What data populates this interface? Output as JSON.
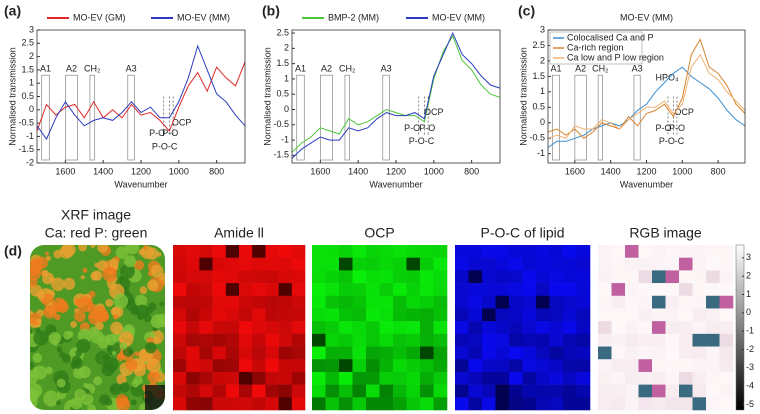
{
  "chart_data": [
    {
      "type": "line",
      "panel": "(a)",
      "xlabel": "Wavenumber",
      "ylabel": "Normalised transmission",
      "x": [
        1750,
        1700,
        1650,
        1600,
        1550,
        1500,
        1450,
        1400,
        1350,
        1300,
        1250,
        1200,
        1150,
        1100,
        1050,
        1000,
        950,
        900,
        850,
        800,
        750,
        700,
        650
      ],
      "xlim": [
        1750,
        650
      ],
      "xticks": [
        1600,
        1400,
        1200,
        1000,
        800
      ],
      "ylim": [
        -2,
        3
      ],
      "yticks": [
        -2,
        -1.5,
        -1,
        -0.5,
        0,
        0.5,
        1,
        1.5,
        2,
        2.5,
        3
      ],
      "legend": "top",
      "series": [
        {
          "name": "MO-EV (GM)",
          "color": "#e02828",
          "values": [
            -0.8,
            0.2,
            -0.2,
            0.1,
            0.2,
            -0.3,
            0.3,
            -0.3,
            0,
            -0.3,
            0.2,
            -0.2,
            -0.1,
            -0.4,
            -0.8,
            0.1,
            0.9,
            1.4,
            0.7,
            1.6,
            1.2,
            0.9,
            1.8
          ]
        },
        {
          "name": "MO-EV (MM)",
          "color": "#2b3cbf",
          "values": [
            -0.6,
            -1.1,
            -0.3,
            0.3,
            -0.2,
            -0.6,
            -0.4,
            -0.3,
            -0.4,
            -0.1,
            0.3,
            -0.1,
            0.1,
            -0.3,
            -0.3,
            0.3,
            1.2,
            2.4,
            1.5,
            0.6,
            0.3,
            -0.2,
            -0.6
          ]
        }
      ],
      "bands": [
        "A1",
        "A2",
        "CH₂",
        "A3"
      ],
      "peaks": [
        "P-O",
        "P-O",
        "P-O-C",
        "OCP"
      ]
    },
    {
      "type": "line",
      "panel": "(b)",
      "xlabel": "Wavenumber",
      "ylabel": "Normalised transmission",
      "x": [
        1750,
        1700,
        1650,
        1600,
        1550,
        1500,
        1450,
        1400,
        1350,
        1300,
        1250,
        1200,
        1150,
        1100,
        1050,
        1000,
        950,
        900,
        850,
        800,
        750,
        700,
        650
      ],
      "xlim": [
        1750,
        650
      ],
      "xticks": [
        1600,
        1400,
        1200,
        1000,
        800
      ],
      "ylim": [
        -1.75,
        2.6
      ],
      "yticks": [
        -1.5,
        -1,
        -0.5,
        0,
        0.5,
        1,
        1.5,
        2,
        2.5
      ],
      "legend": "top",
      "series": [
        {
          "name": "BMP-2  (MM)",
          "color": "#4cc63a",
          "values": [
            -1.4,
            -1.1,
            -0.9,
            -0.6,
            -0.7,
            -0.8,
            -0.3,
            -0.5,
            -0.4,
            -0.2,
            0,
            -0.1,
            -0.2,
            -0.2,
            -0.4,
            1.0,
            1.9,
            2.4,
            1.6,
            1.3,
            0.8,
            0.5,
            0.4
          ]
        },
        {
          "name": "MO-EV (MM)",
          "color": "#2b3cbf",
          "values": [
            -1.6,
            -1.3,
            -1.1,
            -0.9,
            -1.0,
            -1.0,
            -0.6,
            -0.7,
            -0.6,
            -0.3,
            -0.1,
            -0.2,
            -0.2,
            -0.1,
            -0.3,
            1.1,
            1.8,
            2.5,
            1.8,
            1.5,
            1.1,
            0.8,
            0.7
          ]
        }
      ],
      "bands": [
        "A1",
        "A2",
        "CH₂",
        "A3"
      ],
      "peaks": [
        "P-O",
        "P-O",
        "P-O-C",
        "OCP"
      ]
    },
    {
      "type": "line",
      "panel": "(c)",
      "subtitle": "MO-EV (MM)",
      "xlabel": "Wavenumber",
      "ylabel": "Normalised transmission",
      "x": [
        1750,
        1700,
        1650,
        1600,
        1550,
        1500,
        1450,
        1400,
        1350,
        1300,
        1250,
        1200,
        1150,
        1100,
        1050,
        1000,
        950,
        900,
        850,
        800,
        750,
        700,
        650
      ],
      "xlim": [
        1750,
        650
      ],
      "xticks": [
        1600,
        1400,
        1200,
        1000,
        800
      ],
      "ylim": [
        -1.3,
        3
      ],
      "yticks": [
        -1,
        -0.5,
        0,
        0.5,
        1,
        1.5,
        2,
        2.5,
        3
      ],
      "legend": "upper left",
      "series": [
        {
          "name": "Colocalised Ca and P",
          "color": "#3d8fd0",
          "values": [
            -0.8,
            -0.6,
            -0.6,
            -0.5,
            -0.4,
            -0.2,
            -0.1,
            0,
            -0.1,
            0.1,
            0.4,
            0.6,
            1.0,
            1.3,
            1.6,
            1.8,
            1.5,
            1.3,
            1.1,
            0.8,
            0.4,
            0.1,
            -0.1
          ]
        },
        {
          "name": "Ca-rich region",
          "color": "#d9822b",
          "values": [
            -0.3,
            -0.2,
            -0.4,
            -0.2,
            -0.5,
            -0.3,
            0,
            -0.1,
            -0.2,
            0.2,
            -0.1,
            0.3,
            0.4,
            0.6,
            0.2,
            0.8,
            2.2,
            2.7,
            1.8,
            1.6,
            1.2,
            0.6,
            0.3
          ]
        },
        {
          "name": "Ca low and P low region",
          "color": "#f0b070",
          "values": [
            -0.5,
            -0.4,
            -0.5,
            -0.1,
            -0.2,
            -0.2,
            0.1,
            0,
            -0.2,
            0.1,
            0.3,
            0.5,
            0.5,
            0.7,
            0.3,
            0.6,
            1.8,
            2.2,
            1.6,
            1.4,
            1.0,
            0.7,
            0.4
          ]
        }
      ],
      "bands": [
        "A1",
        "A2",
        "CH₂",
        "A3"
      ],
      "peaks": [
        "HPO₄",
        "P-O",
        "P-O",
        "P-O-C",
        "OCP"
      ]
    }
  ],
  "images": {
    "panel": "(d)",
    "xrf_title": "XRF image",
    "xrf_subtitle": "Ca: red P: green",
    "titles": [
      "Amide ll",
      "OCP",
      "P-O-C of lipid",
      "RGB image"
    ],
    "colorbar": {
      "lim": [
        -5.3,
        3.7
      ],
      "ticks": [
        3,
        2,
        1,
        0,
        -1,
        -2,
        -3,
        -4,
        -5
      ]
    }
  }
}
